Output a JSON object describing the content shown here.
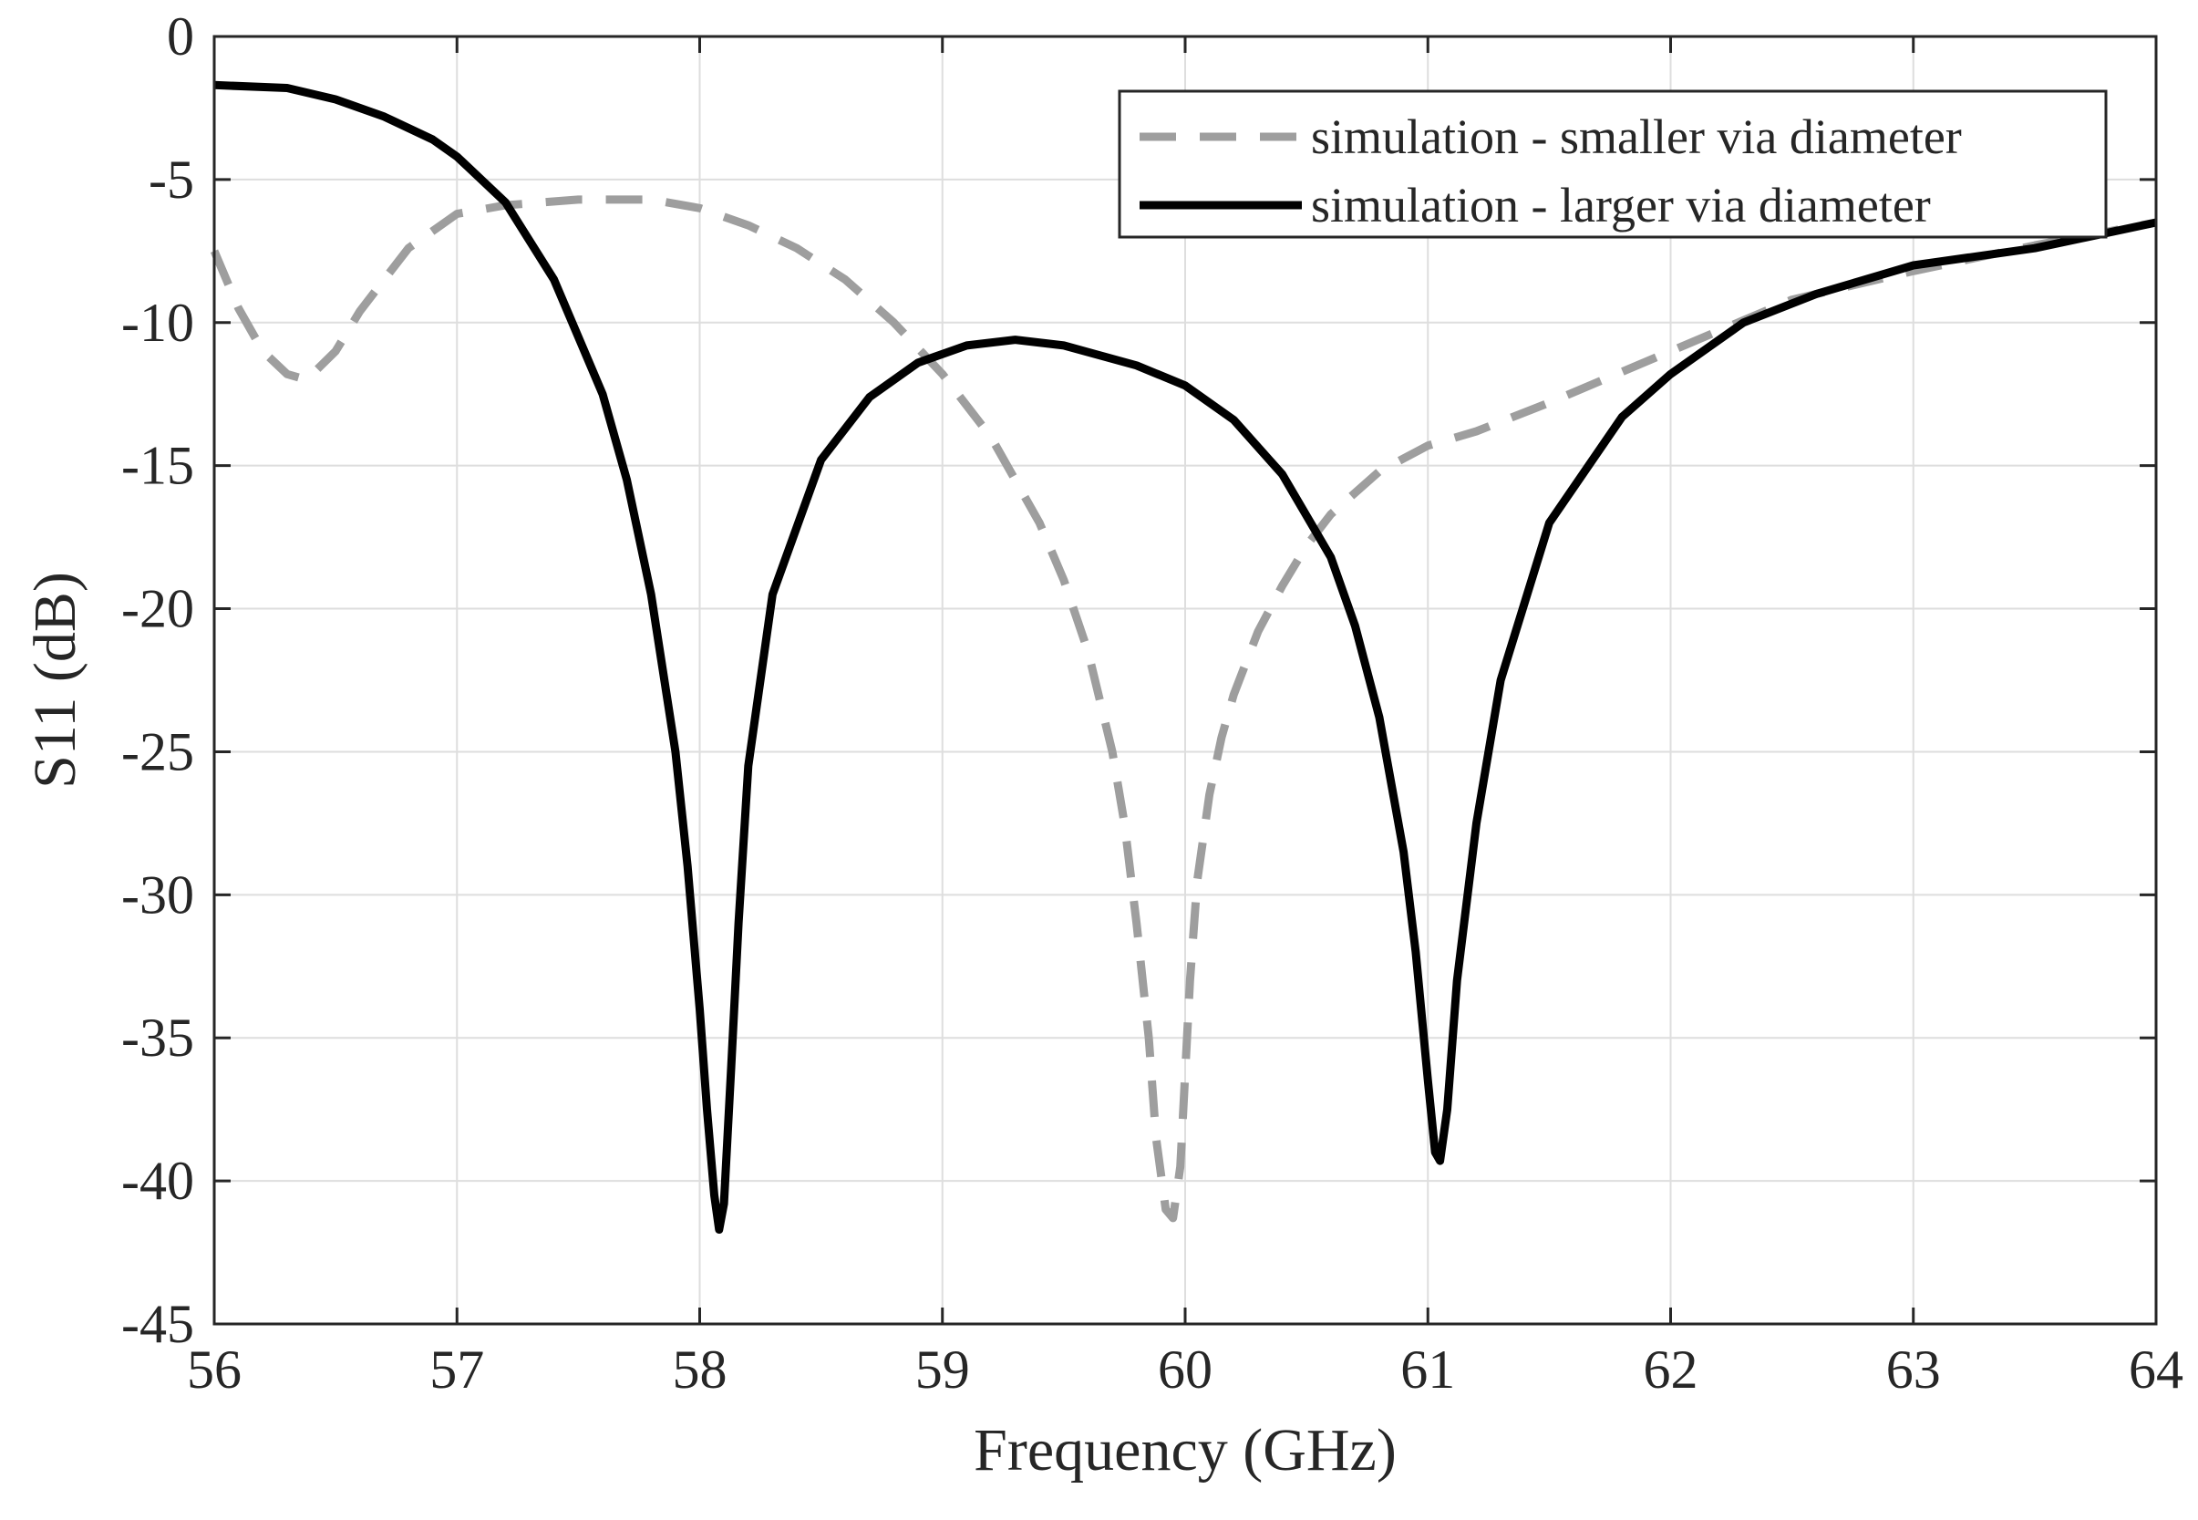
{
  "chart_data": {
    "type": "line",
    "title": "",
    "xlabel": "Frequency (GHz)",
    "ylabel": "S11 (dB)",
    "xlim": [
      56,
      64
    ],
    "ylim": [
      -45,
      0
    ],
    "grid": true,
    "legend_position": "top-right",
    "x_ticks": [
      56,
      57,
      58,
      59,
      60,
      61,
      62,
      63,
      64
    ],
    "x_tick_labels": [
      "56",
      "57",
      "58",
      "59",
      "60",
      "61",
      "62",
      "63",
      "64"
    ],
    "y_ticks": [
      0,
      -5,
      -10,
      -15,
      -20,
      -25,
      -30,
      -35,
      -40,
      -45
    ],
    "y_tick_labels": [
      "0",
      "-5",
      "-10",
      "-15",
      "-20",
      "-25",
      "-30",
      "-35",
      "-40",
      "-45"
    ],
    "series": [
      {
        "name": "simulation - smaller via diameter",
        "color": "#9e9e9e",
        "style": "dashed",
        "x": [
          56.0,
          56.1,
          56.2,
          56.3,
          56.38,
          56.5,
          56.6,
          56.8,
          57.0,
          57.2,
          57.5,
          57.8,
          58.0,
          58.2,
          58.4,
          58.6,
          58.8,
          59.0,
          59.2,
          59.4,
          59.5,
          59.6,
          59.7,
          59.75,
          59.8,
          59.85,
          59.88,
          59.92,
          59.95,
          59.98,
          60.02,
          60.05,
          60.1,
          60.15,
          60.2,
          60.3,
          60.4,
          60.5,
          60.6,
          60.8,
          61.0,
          61.2,
          61.5,
          62.0,
          62.5,
          63.0,
          63.5,
          64.0
        ],
        "y": [
          -7.5,
          -9.5,
          -11.0,
          -11.8,
          -12.0,
          -11.0,
          -9.6,
          -7.4,
          -6.2,
          -5.9,
          -5.7,
          -5.7,
          -6.0,
          -6.6,
          -7.4,
          -8.5,
          -10.0,
          -11.8,
          -14.0,
          -17.0,
          -19.0,
          -21.5,
          -25.0,
          -27.5,
          -31.0,
          -35.0,
          -38.5,
          -41.0,
          -41.3,
          -39.5,
          -33.0,
          -29.5,
          -26.5,
          -24.5,
          -23.0,
          -20.8,
          -19.2,
          -17.8,
          -16.7,
          -15.2,
          -14.3,
          -13.8,
          -12.8,
          -11.0,
          -9.2,
          -8.2,
          -7.3,
          -6.5
        ]
      },
      {
        "name": "simulation - larger via diameter",
        "color": "#000000",
        "style": "solid",
        "x": [
          56.0,
          56.3,
          56.5,
          56.7,
          56.9,
          57.0,
          57.2,
          57.4,
          57.6,
          57.7,
          57.8,
          57.9,
          57.95,
          58.0,
          58.03,
          58.06,
          58.08,
          58.1,
          58.13,
          58.16,
          58.2,
          58.3,
          58.5,
          58.7,
          58.9,
          59.1,
          59.3,
          59.5,
          59.8,
          60.0,
          60.2,
          60.4,
          60.6,
          60.7,
          60.8,
          60.9,
          60.95,
          61.0,
          61.03,
          61.05,
          61.08,
          61.12,
          61.2,
          61.3,
          61.5,
          61.8,
          62.0,
          62.3,
          62.6,
          63.0,
          63.5,
          64.0
        ],
        "y": [
          -1.7,
          -1.8,
          -2.2,
          -2.8,
          -3.6,
          -4.2,
          -5.8,
          -8.5,
          -12.5,
          -15.5,
          -19.5,
          -25.0,
          -29.0,
          -34.0,
          -37.5,
          -40.5,
          -41.7,
          -40.8,
          -36.0,
          -31.0,
          -25.5,
          -19.5,
          -14.8,
          -12.6,
          -11.4,
          -10.8,
          -10.6,
          -10.8,
          -11.5,
          -12.2,
          -13.4,
          -15.3,
          -18.2,
          -20.6,
          -23.8,
          -28.5,
          -32.0,
          -36.5,
          -39.0,
          -39.3,
          -37.5,
          -33.0,
          -27.5,
          -22.5,
          -17.0,
          -13.3,
          -11.8,
          -10.0,
          -9.0,
          -8.0,
          -7.4,
          -6.5
        ]
      }
    ]
  }
}
